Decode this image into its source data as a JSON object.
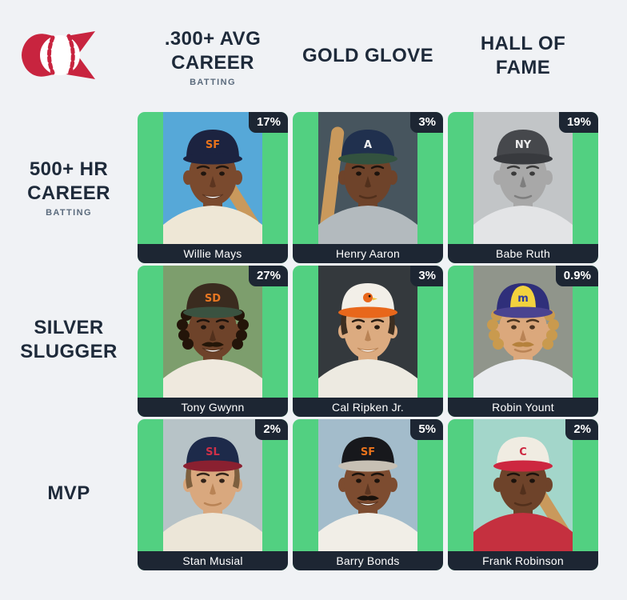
{
  "theme": {
    "page_bg": "#f0f2f5",
    "cell_green": "#52d081",
    "bar_dark": "#1d2633",
    "header_text": "#1e2a3a",
    "sub_text": "#5b6b7d",
    "logo_red": "#c8243f",
    "badge_text": "#ffffff"
  },
  "logo": {
    "icon": "baseball-pennant-logo"
  },
  "columns": [
    {
      "line1": ".300+ AVG",
      "line2": "CAREER",
      "subtitle": "BATTING"
    },
    {
      "line1": "GOLD GLOVE",
      "line2": "",
      "subtitle": ""
    },
    {
      "line1": "HALL OF",
      "line2": "FAME",
      "subtitle": ""
    }
  ],
  "rows": [
    {
      "line1": "500+ HR",
      "line2": "CAREER",
      "subtitle": "BATTING"
    },
    {
      "line1": "SILVER",
      "line2": "SLUGGER",
      "subtitle": ""
    },
    {
      "line1": "MVP",
      "line2": "",
      "subtitle": ""
    }
  ],
  "cells": [
    {
      "name": "Willie Mays",
      "pct": "17%",
      "portrait": {
        "bg": "#56a8d8",
        "skin": "#7a4a2e",
        "skin_shadow": "#5c3520",
        "eye": "#20160f",
        "cap": "#1c2340",
        "cap_panel": null,
        "brim": "#1c2340",
        "logo": "SF",
        "logo_color": "#e8731c",
        "jersey": "#eee7d6",
        "hair": null,
        "curly": false,
        "mustache": null,
        "smile": true,
        "bat": "right"
      }
    },
    {
      "name": "Henry Aaron",
      "pct": "3%",
      "portrait": {
        "bg": "#47555e",
        "skin": "#6e432a",
        "skin_shadow": "#52301c",
        "eye": "#1c130d",
        "cap": "#20304e",
        "cap_panel": null,
        "brim": "#33523f",
        "logo": "A",
        "logo_color": "#f2f2f2",
        "jersey": "#b3babe",
        "hair": null,
        "curly": false,
        "mustache": null,
        "smile": false,
        "bat": "left"
      }
    },
    {
      "name": "Babe Ruth",
      "pct": "19%",
      "portrait": {
        "bg": "#c2c5c7",
        "skin": "#a8a8a8",
        "skin_shadow": "#7e7e7e",
        "eye": "#3a3a3a",
        "cap": "#46484c",
        "cap_panel": null,
        "brim": "#383a3e",
        "logo": "NY",
        "logo_color": "#ececec",
        "jersey": "#e3e4e6",
        "hair": null,
        "curly": false,
        "mustache": null,
        "smile": false,
        "bat": null
      }
    },
    {
      "name": "Tony Gwynn",
      "pct": "27%",
      "portrait": {
        "bg": "#7d9e6d",
        "skin": "#6e432a",
        "skin_shadow": "#52301c",
        "eye": "#1c130d",
        "cap": "#3a2b1f",
        "cap_panel": null,
        "brim": "#3a5240",
        "logo": "SD",
        "logo_color": "#e87722",
        "jersey": "#efe9de",
        "hair": "#231409",
        "curly": true,
        "mustache": "#241608",
        "smile": true,
        "bat": null
      }
    },
    {
      "name": "Cal Ripken Jr.",
      "pct": "3%",
      "portrait": {
        "bg": "#34393d",
        "skin": "#dcab80",
        "skin_shadow": "#b98355",
        "eye": "#2a1d12",
        "cap": "#f2efe8",
        "cap_panel": null,
        "brim": "#e8671b",
        "logo": "bird",
        "logo_color": "#e8671b",
        "jersey": "#edeae1",
        "hair": "#3d2e20",
        "curly": false,
        "mustache": null,
        "smile": true,
        "bat": null
      }
    },
    {
      "name": "Robin Yount",
      "pct": "0.9%",
      "portrait": {
        "bg": "#90958b",
        "skin": "#dba87c",
        "skin_shadow": "#b98355",
        "eye": "#4a3420",
        "cap": "#2f2f7a",
        "cap_panel": "#f2d23e",
        "brim": "#4a4390",
        "logo": "m",
        "logo_color": "#2d3ba0",
        "jersey": "#e9ebee",
        "hair": "#c99a4e",
        "curly": true,
        "mustache": "#b5813c",
        "smile": false,
        "bat": null
      }
    },
    {
      "name": "Stan Musial",
      "pct": "2%",
      "portrait": {
        "bg": "#b7c3c7",
        "skin": "#d9a87e",
        "skin_shadow": "#b98355",
        "eye": "#33241a",
        "cap": "#1d2a4a",
        "cap_panel": null,
        "brim": "#8a2030",
        "logo": "SL",
        "logo_color": "#d03048",
        "jersey": "#ece6d8",
        "hair": "#7d5f3e",
        "curly": false,
        "mustache": null,
        "smile": false,
        "bat": null
      }
    },
    {
      "name": "Barry Bonds",
      "pct": "5%",
      "portrait": {
        "bg": "#a3bccb",
        "skin": "#7d4c30",
        "skin_shadow": "#5c3520",
        "eye": "#1c130d",
        "cap": "#17181c",
        "cap_panel": null,
        "brim": "#c7c0b4",
        "logo": "SF",
        "logo_color": "#e8731c",
        "jersey": "#f1eee7",
        "hair": null,
        "curly": false,
        "mustache": "#1a120c",
        "smile": true,
        "bat": null
      }
    },
    {
      "name": "Frank Robinson",
      "pct": "2%",
      "portrait": {
        "bg": "#a3d6ca",
        "skin": "#6e432a",
        "skin_shadow": "#52301c",
        "eye": "#1c130d",
        "cap": "#f0ece2",
        "cap_panel": null,
        "brim": "#cd2740",
        "logo": "C",
        "logo_color": "#cd2740",
        "jersey": "#c5303f",
        "hair": null,
        "curly": false,
        "mustache": null,
        "smile": false,
        "bat": "right"
      }
    }
  ]
}
